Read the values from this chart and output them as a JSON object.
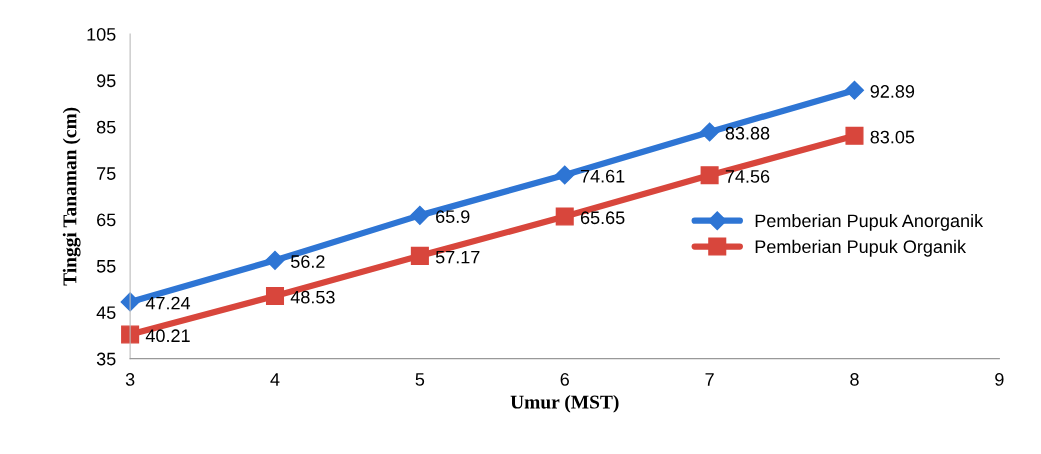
{
  "chart_data": {
    "type": "line",
    "xlabel": "Umur (MST)",
    "ylabel": "Tinggi Tanaman (cm)",
    "x": [
      3,
      4,
      5,
      6,
      7,
      8
    ],
    "xlim": [
      3,
      9
    ],
    "xticks": [
      3,
      4,
      5,
      6,
      7,
      8,
      9
    ],
    "ylim": [
      35,
      105
    ],
    "yticks": [
      35,
      45,
      55,
      65,
      75,
      85,
      95,
      105
    ],
    "grid": false,
    "legend": "right",
    "data_labels": true,
    "line_style": "solid",
    "series": [
      {
        "name": "Pemberian Pupuk Anorganik",
        "color": "#2e75d4",
        "marker": "diamond",
        "values": [
          47.24,
          56.2,
          65.9,
          74.61,
          83.88,
          92.89
        ]
      },
      {
        "name": "Pemberian Pupuk Organik",
        "color": "#d8463c",
        "marker": "square",
        "values": [
          40.21,
          48.53,
          57.17,
          65.65,
          74.56,
          83.05
        ]
      }
    ]
  }
}
